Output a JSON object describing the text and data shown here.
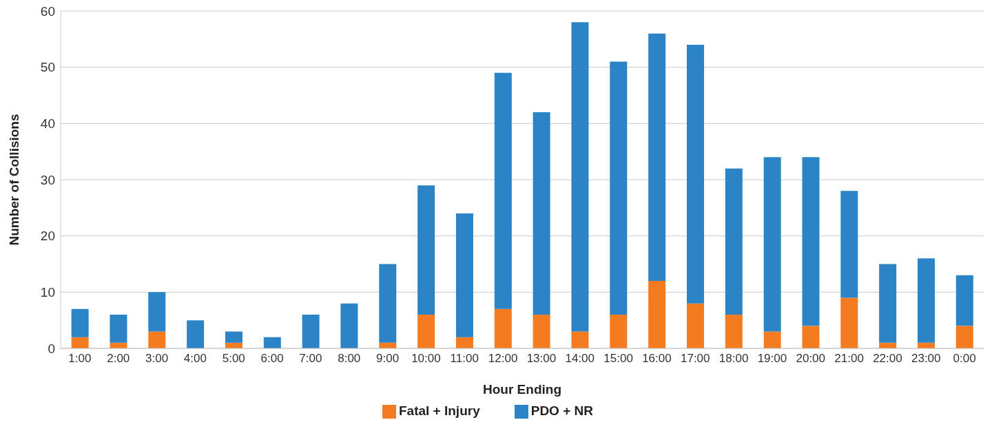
{
  "chart_data": {
    "type": "bar",
    "stacked": true,
    "xlabel": "Hour Ending",
    "ylabel": "Number of Collisions",
    "categories": [
      "1:00",
      "2:00",
      "3:00",
      "4:00",
      "5:00",
      "6:00",
      "7:00",
      "8:00",
      "9:00",
      "10:00",
      "11:00",
      "12:00",
      "13:00",
      "14:00",
      "15:00",
      "16:00",
      "17:00",
      "18:00",
      "19:00",
      "20:00",
      "21:00",
      "22:00",
      "23:00",
      "0:00"
    ],
    "series": [
      {
        "name": "Fatal + Injury",
        "color": "#f47b20",
        "values": [
          2,
          1,
          3,
          0,
          1,
          0,
          0,
          0,
          1,
          6,
          2,
          7,
          6,
          3,
          6,
          12,
          8,
          6,
          3,
          4,
          9,
          1,
          1,
          4
        ]
      },
      {
        "name": "PDO + NR",
        "color": "#2a84c6",
        "values": [
          5,
          5,
          7,
          5,
          2,
          2,
          6,
          8,
          14,
          23,
          22,
          42,
          36,
          55,
          45,
          44,
          46,
          26,
          31,
          30,
          19,
          14,
          15,
          9
        ]
      }
    ],
    "ylim": [
      0,
      60
    ],
    "yticks": [
      0,
      10,
      20,
      30,
      40,
      50,
      60
    ],
    "grid": "y",
    "legend": "bottom"
  }
}
